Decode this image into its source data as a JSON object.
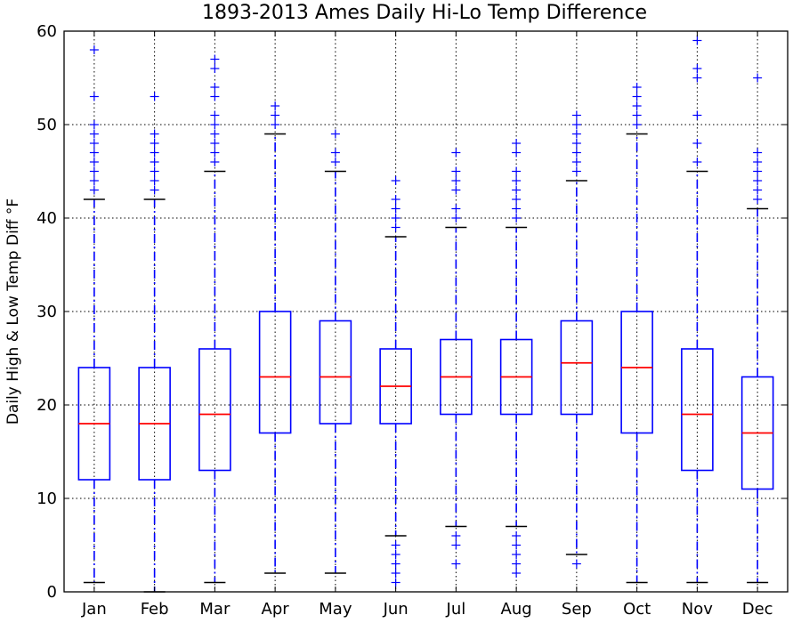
{
  "chart_data": {
    "type": "box",
    "title": "1893-2013 Ames Daily Hi-Lo Temp Difference",
    "xlabel": "",
    "ylabel": "Daily High & Low Temp Diff °F",
    "ylim": [
      0,
      60
    ],
    "yticks": [
      0,
      10,
      20,
      30,
      40,
      50,
      60
    ],
    "grid": true,
    "categories": [
      "Jan",
      "Feb",
      "Mar",
      "Apr",
      "May",
      "Jun",
      "Jul",
      "Aug",
      "Sep",
      "Oct",
      "Nov",
      "Dec"
    ],
    "boxes": [
      {
        "category": "Jan",
        "whisker_low": 1,
        "q1": 12,
        "median": 18,
        "q3": 24,
        "whisker_high": 42,
        "outliers": [
          43,
          44,
          45,
          46,
          47,
          48,
          49,
          50,
          53,
          58
        ]
      },
      {
        "category": "Feb",
        "whisker_low": 0,
        "q1": 12,
        "median": 18,
        "q3": 24,
        "whisker_high": 42,
        "outliers": [
          43,
          44,
          45,
          46,
          47,
          48,
          49,
          53
        ]
      },
      {
        "category": "Mar",
        "whisker_low": 1,
        "q1": 13,
        "median": 19,
        "q3": 26,
        "whisker_high": 45,
        "outliers": [
          46,
          47,
          48,
          49,
          50,
          51,
          53,
          54,
          56,
          57
        ]
      },
      {
        "category": "Apr",
        "whisker_low": 2,
        "q1": 17,
        "median": 23,
        "q3": 30,
        "whisker_high": 49,
        "outliers": [
          50,
          51,
          52
        ]
      },
      {
        "category": "May",
        "whisker_low": 2,
        "q1": 18,
        "median": 23,
        "q3": 29,
        "whisker_high": 45,
        "outliers": [
          46,
          47,
          49
        ]
      },
      {
        "category": "Jun",
        "whisker_low": 6,
        "q1": 18,
        "median": 22,
        "q3": 26,
        "whisker_high": 38,
        "outliers": [
          39,
          40,
          41,
          42,
          44,
          5,
          4,
          3,
          2,
          1
        ]
      },
      {
        "category": "Jul",
        "whisker_low": 7,
        "q1": 19,
        "median": 23,
        "q3": 27,
        "whisker_high": 39,
        "outliers": [
          40,
          41,
          43,
          44,
          45,
          47,
          6,
          5,
          3
        ]
      },
      {
        "category": "Aug",
        "whisker_low": 7,
        "q1": 19,
        "median": 23,
        "q3": 27,
        "whisker_high": 39,
        "outliers": [
          40,
          41,
          42,
          43,
          44,
          45,
          47,
          48,
          6,
          5,
          4,
          3,
          2
        ]
      },
      {
        "category": "Sep",
        "whisker_low": 4,
        "q1": 19,
        "median": 24.5,
        "q3": 29,
        "whisker_high": 44,
        "outliers": [
          45,
          46,
          47,
          48,
          49,
          50,
          51,
          3
        ]
      },
      {
        "category": "Oct",
        "whisker_low": 1,
        "q1": 17,
        "median": 24,
        "q3": 30,
        "whisker_high": 49,
        "outliers": [
          50,
          51,
          52,
          53,
          54
        ]
      },
      {
        "category": "Nov",
        "whisker_low": 1,
        "q1": 13,
        "median": 19,
        "q3": 26,
        "whisker_high": 45,
        "outliers": [
          46,
          48,
          51,
          55,
          56,
          59
        ]
      },
      {
        "category": "Dec",
        "whisker_low": 1,
        "q1": 11,
        "median": 17,
        "q3": 23,
        "whisker_high": 41,
        "outliers": [
          42,
          43,
          44,
          45,
          46,
          47,
          55
        ]
      }
    ],
    "colors": {
      "box": "#0000ff",
      "median": "#ff0000",
      "whisker": "#0000ff",
      "cap": "#000000",
      "outlier": "#0000ff",
      "grid": "#000000"
    }
  }
}
